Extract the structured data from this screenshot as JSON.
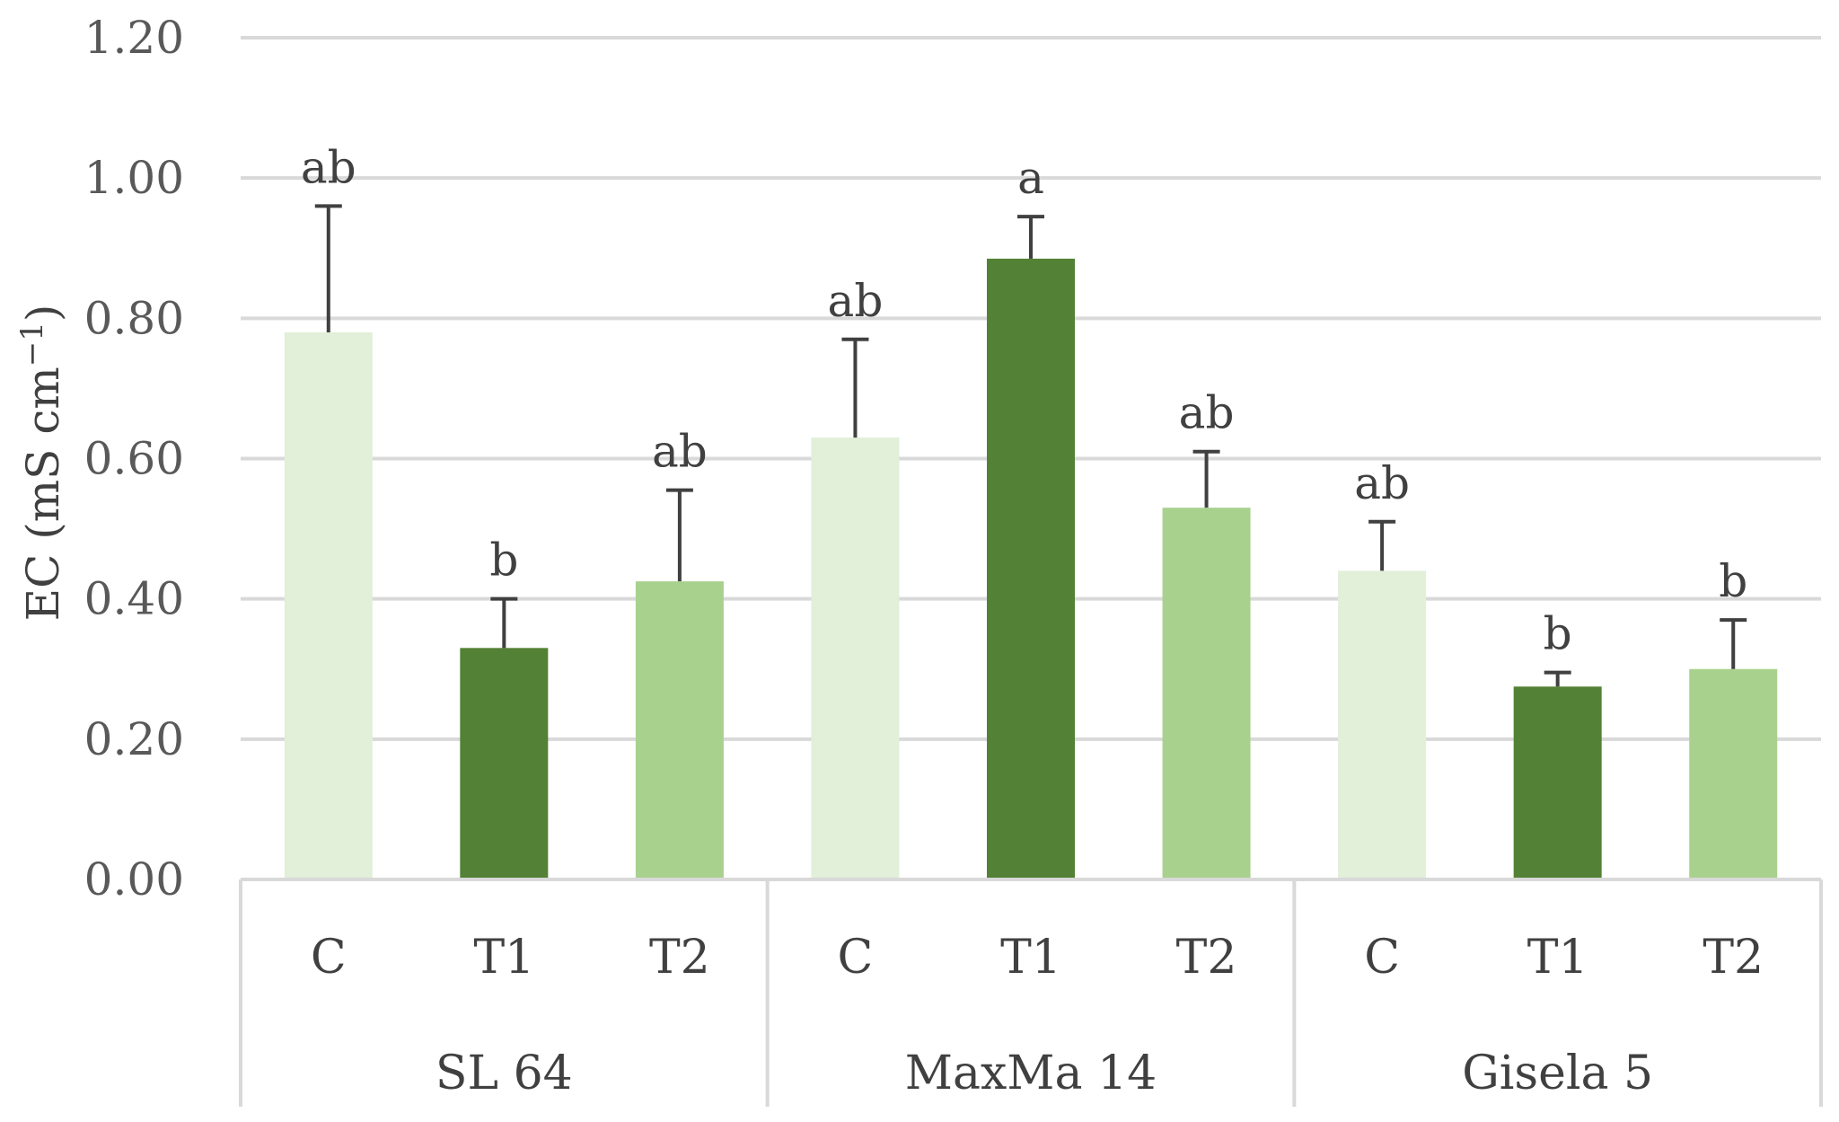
{
  "chart_data": {
    "type": "bar",
    "ylabel": "EC (mS cm",
    "ylabel_sup": "−1",
    "ylabel_close": ")",
    "ylim": [
      0,
      1.2
    ],
    "yticks": [
      "0.00",
      "0.20",
      "0.40",
      "0.60",
      "0.80",
      "1.00",
      "1.20"
    ],
    "ytick_values": [
      0,
      0.2,
      0.4,
      0.6,
      0.8,
      1.0,
      1.2
    ],
    "grid": true,
    "colors": {
      "C": "#e2efd9",
      "T1": "#538135",
      "T2": "#a9d18e"
    },
    "groups": [
      {
        "name": "SL 64",
        "bars": [
          {
            "category": "C",
            "value": 0.78,
            "error": 0.18,
            "sig": "ab"
          },
          {
            "category": "T1",
            "value": 0.33,
            "error": 0.07,
            "sig": "b"
          },
          {
            "category": "T2",
            "value": 0.425,
            "error": 0.13,
            "sig": "ab"
          }
        ]
      },
      {
        "name": "MaxMa 14",
        "bars": [
          {
            "category": "C",
            "value": 0.63,
            "error": 0.14,
            "sig": "ab"
          },
          {
            "category": "T1",
            "value": 0.885,
            "error": 0.06,
            "sig": "a"
          },
          {
            "category": "T2",
            "value": 0.53,
            "error": 0.08,
            "sig": "ab"
          }
        ]
      },
      {
        "name": "Gisela 5",
        "bars": [
          {
            "category": "C",
            "value": 0.44,
            "error": 0.07,
            "sig": "ab"
          },
          {
            "category": "T1",
            "value": 0.275,
            "error": 0.02,
            "sig": "b"
          },
          {
            "category": "T2",
            "value": 0.3,
            "error": 0.07,
            "sig": "b"
          }
        ]
      }
    ]
  }
}
